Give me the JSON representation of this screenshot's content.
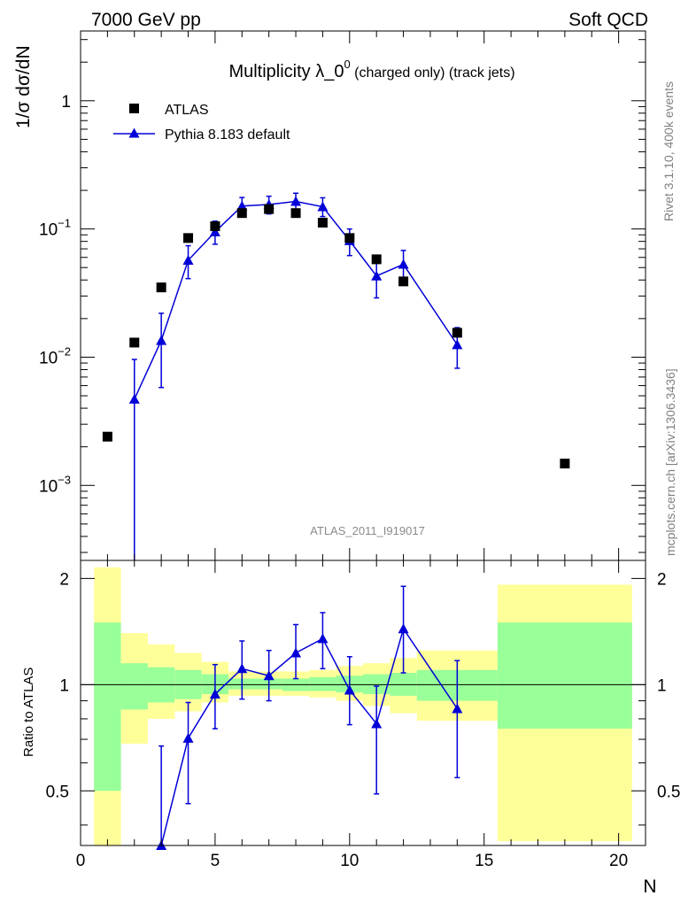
{
  "header": {
    "left": "7000 GeV pp",
    "right": "Soft QCD"
  },
  "side_labels": {
    "rivet": "Rivet 3.1.10,  400k events",
    "mcplots": "mcplots.cern.ch [arXiv:1306.3436]"
  },
  "colors": {
    "mc": "#0000d8",
    "band_inner": "#99ff99",
    "band_outer": "#ffff99",
    "data": "#000000"
  },
  "chart_data": [
    {
      "id": "main",
      "type": "scatter",
      "title_main": "Multiplicity λ_0",
      "title_sup": "0",
      "title_small": " (charged only) (track jets)",
      "ylabel": "1/σ dσ/dN",
      "yscale": "log",
      "ylim": [
        0.00026,
        3.5
      ],
      "xlim": [
        0,
        21
      ],
      "analysis_label": "ATLAS_2011_I919017",
      "ytick_labels": [
        {
          "value": 1,
          "base": "1",
          "exp": ""
        },
        {
          "value": 0.1,
          "base": "10",
          "exp": "−1"
        },
        {
          "value": 0.01,
          "base": "10",
          "exp": "−2"
        },
        {
          "value": 0.001,
          "base": "10",
          "exp": "−3"
        }
      ],
      "legend": [
        {
          "label": "ATLAS",
          "marker": "square"
        },
        {
          "label": "Pythia 8.183 default",
          "marker": "triangle"
        }
      ],
      "series": [
        {
          "name": "ATLAS",
          "marker": "square",
          "points": [
            {
              "x": 1,
              "y": 0.0024,
              "lo": 0.0024,
              "hi": 0.0024
            },
            {
              "x": 2,
              "y": 0.013,
              "lo": 0.013,
              "hi": 0.013
            },
            {
              "x": 3,
              "y": 0.035,
              "lo": 0.035,
              "hi": 0.035
            },
            {
              "x": 4,
              "y": 0.085,
              "lo": 0.085,
              "hi": 0.085
            },
            {
              "x": 5,
              "y": 0.105,
              "lo": 0.099,
              "hi": 0.112
            },
            {
              "x": 6,
              "y": 0.133,
              "lo": 0.127,
              "hi": 0.139
            },
            {
              "x": 7,
              "y": 0.143,
              "lo": 0.137,
              "hi": 0.149
            },
            {
              "x": 8,
              "y": 0.133,
              "lo": 0.128,
              "hi": 0.138
            },
            {
              "x": 9,
              "y": 0.112,
              "lo": 0.108,
              "hi": 0.116
            },
            {
              "x": 10,
              "y": 0.085,
              "lo": 0.082,
              "hi": 0.088
            },
            {
              "x": 11,
              "y": 0.058,
              "lo": 0.058,
              "hi": 0.058
            },
            {
              "x": 12,
              "y": 0.039,
              "lo": 0.039,
              "hi": 0.039
            },
            {
              "x": 14,
              "y": 0.0155,
              "lo": 0.0145,
              "hi": 0.0165
            },
            {
              "x": 18,
              "y": 0.00148,
              "lo": 0.00148,
              "hi": 0.00148
            }
          ]
        },
        {
          "name": "Pythia 8.183 default",
          "marker": "triangle",
          "points": [
            {
              "x": 2,
              "y": 0.0047,
              "lo": 0.0001,
              "hi": 0.0096
            },
            {
              "x": 3,
              "y": 0.0135,
              "lo": 0.0058,
              "hi": 0.022
            },
            {
              "x": 4,
              "y": 0.057,
              "lo": 0.041,
              "hi": 0.074
            },
            {
              "x": 5,
              "y": 0.095,
              "lo": 0.076,
              "hi": 0.115
            },
            {
              "x": 6,
              "y": 0.151,
              "lo": 0.127,
              "hi": 0.176
            },
            {
              "x": 7,
              "y": 0.155,
              "lo": 0.131,
              "hi": 0.18
            },
            {
              "x": 8,
              "y": 0.164,
              "lo": 0.139,
              "hi": 0.19
            },
            {
              "x": 9,
              "y": 0.149,
              "lo": 0.125,
              "hi": 0.175
            },
            {
              "x": 10,
              "y": 0.081,
              "lo": 0.062,
              "hi": 0.1
            },
            {
              "x": 11,
              "y": 0.043,
              "lo": 0.029,
              "hi": 0.057
            },
            {
              "x": 12,
              "y": 0.053,
              "lo": 0.037,
              "hi": 0.068
            },
            {
              "x": 14,
              "y": 0.0125,
              "lo": 0.0082,
              "hi": 0.017
            }
          ]
        }
      ]
    },
    {
      "id": "ratio",
      "type": "line",
      "ylabel": "Ratio to ATLAS",
      "xlabel": "N",
      "ylim": [
        0.35,
        2.25
      ],
      "xlim": [
        0,
        21
      ],
      "reference": 1,
      "xtick_labels": [
        "0",
        "5",
        "10",
        "15",
        "20"
      ],
      "ytick_labels": [
        "0.5",
        "1",
        "2"
      ],
      "bands": [
        {
          "x0": 0.5,
          "x1": 1.5,
          "inner": [
            0.5,
            1.5
          ],
          "outer": [
            0.3,
            2.15
          ]
        },
        {
          "x0": 1.5,
          "x1": 2.5,
          "inner": [
            0.85,
            1.15
          ],
          "outer": [
            0.68,
            1.4
          ]
        },
        {
          "x0": 2.5,
          "x1": 3.5,
          "inner": [
            0.89,
            1.12
          ],
          "outer": [
            0.8,
            1.3
          ]
        },
        {
          "x0": 3.5,
          "x1": 4.5,
          "inner": [
            0.91,
            1.1
          ],
          "outer": [
            0.84,
            1.23
          ]
        },
        {
          "x0": 4.5,
          "x1": 5.5,
          "inner": [
            0.94,
            1.07
          ],
          "outer": [
            0.89,
            1.16
          ]
        },
        {
          "x0": 5.5,
          "x1": 6.5,
          "inner": [
            0.97,
            1.04
          ],
          "outer": [
            0.93,
            1.09
          ]
        },
        {
          "x0": 6.5,
          "x1": 7.5,
          "inner": [
            0.97,
            1.04
          ],
          "outer": [
            0.93,
            1.09
          ]
        },
        {
          "x0": 7.5,
          "x1": 8.5,
          "inner": [
            0.96,
            1.04
          ],
          "outer": [
            0.93,
            1.09
          ]
        },
        {
          "x0": 8.5,
          "x1": 9.5,
          "inner": [
            0.96,
            1.05
          ],
          "outer": [
            0.92,
            1.1
          ]
        },
        {
          "x0": 9.5,
          "x1": 10.5,
          "inner": [
            0.95,
            1.06
          ],
          "outer": [
            0.9,
            1.13
          ]
        },
        {
          "x0": 10.5,
          "x1": 11.5,
          "inner": [
            0.94,
            1.07
          ],
          "outer": [
            0.87,
            1.15
          ]
        },
        {
          "x0": 11.5,
          "x1": 12.5,
          "inner": [
            0.93,
            1.08
          ],
          "outer": [
            0.83,
            1.19
          ]
        },
        {
          "x0": 12.5,
          "x1": 15.5,
          "inner": [
            0.9,
            1.1
          ],
          "outer": [
            0.79,
            1.25
          ]
        },
        {
          "x0": 15.5,
          "x1": 20.5,
          "inner": [
            0.75,
            1.5
          ],
          "outer": [
            0.36,
            1.92
          ]
        }
      ],
      "series": [
        {
          "name": "Pythia 8.183 default / ATLAS",
          "marker": "triangle",
          "points": [
            {
              "x": 3,
              "y": 0.345,
              "lo": 0.2,
              "hi": 0.67
            },
            {
              "x": 4,
              "y": 0.705,
              "lo": 0.46,
              "hi": 0.89
            },
            {
              "x": 5,
              "y": 0.94,
              "lo": 0.75,
              "hi": 1.14
            },
            {
              "x": 6,
              "y": 1.11,
              "lo": 0.91,
              "hi": 1.33
            },
            {
              "x": 7,
              "y": 1.06,
              "lo": 0.9,
              "hi": 1.25
            },
            {
              "x": 8,
              "y": 1.23,
              "lo": 1.04,
              "hi": 1.48
            },
            {
              "x": 9,
              "y": 1.35,
              "lo": 1.11,
              "hi": 1.6
            },
            {
              "x": 10,
              "y": 0.965,
              "lo": 0.77,
              "hi": 1.2
            },
            {
              "x": 11,
              "y": 0.775,
              "lo": 0.49,
              "hi": 0.99
            },
            {
              "x": 12,
              "y": 1.44,
              "lo": 1.08,
              "hi": 1.9
            },
            {
              "x": 14,
              "y": 0.855,
              "lo": 0.545,
              "hi": 1.17
            }
          ]
        }
      ]
    }
  ]
}
